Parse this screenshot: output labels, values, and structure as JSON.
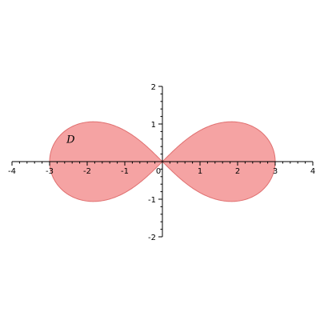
{
  "chart_data": {
    "type": "area",
    "title": "",
    "xlabel": "",
    "ylabel": "",
    "xlim": [
      -4,
      4
    ],
    "ylim": [
      -2,
      2
    ],
    "x_ticks": [
      -4,
      -3,
      -2,
      -1,
      0,
      1,
      2,
      3,
      4
    ],
    "x_tick_labels": [
      "-4",
      "-3",
      "-2",
      "-1",
      "0",
      "1",
      "2",
      "3",
      "4"
    ],
    "y_ticks": [
      -2,
      -1,
      1,
      2
    ],
    "y_tick_labels": [
      "-2",
      "-1",
      "1",
      "2"
    ],
    "grid": false,
    "region": {
      "label": "D",
      "fill": "#f5a3a3",
      "stroke": "#e07070",
      "polar_curve": "r^2 = 9 cos(2θ)",
      "x_extent": [
        -3,
        3
      ],
      "y_extent": [
        -1.06,
        1.06
      ]
    },
    "region_label_position": {
      "x": -2.55,
      "y": 0.5
    }
  }
}
